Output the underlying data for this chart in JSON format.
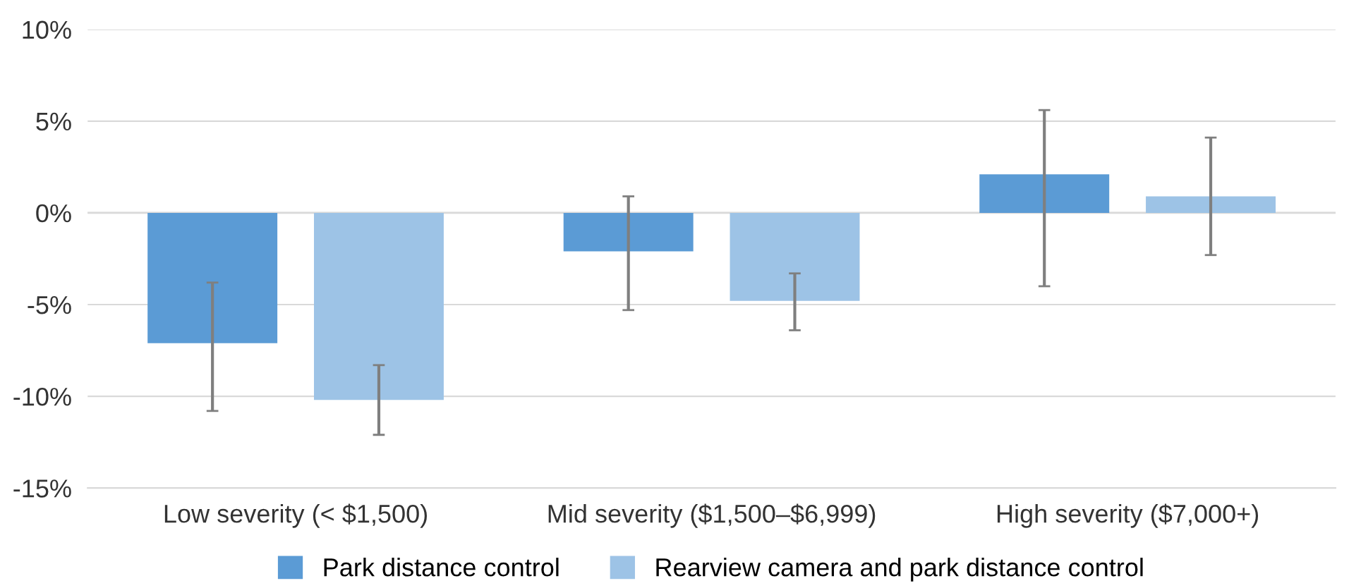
{
  "chart_data": {
    "type": "bar",
    "categories": [
      "Low severity (< $1,500)",
      "Mid severity ($1,500–$6,999)",
      "High severity ($7,000+)"
    ],
    "series": [
      {
        "name": "Park distance control",
        "color": "#5b9bd5",
        "values": [
          -7.1,
          -2.1,
          2.1
        ],
        "errors": [
          [
            -10.8,
            -3.8
          ],
          [
            -5.3,
            0.9
          ],
          [
            -4.0,
            5.6
          ]
        ]
      },
      {
        "name": "Rearview camera and park distance control",
        "color": "#9dc3e6",
        "values": [
          -10.2,
          -4.8,
          0.9
        ],
        "errors": [
          [
            -12.1,
            -8.3
          ],
          [
            -6.4,
            -3.3
          ],
          [
            -2.3,
            4.1
          ]
        ]
      }
    ],
    "ylim": [
      -15,
      10
    ],
    "yticks": [
      {
        "value": -15,
        "label": "-15%"
      },
      {
        "value": -10,
        "label": "-10%"
      },
      {
        "value": -5,
        "label": "-5%"
      },
      {
        "value": 0,
        "label": "0%"
      },
      {
        "value": 5,
        "label": "5%"
      },
      {
        "value": 10,
        "label": "10%"
      }
    ],
    "grid": "y",
    "legend": "bottom"
  }
}
